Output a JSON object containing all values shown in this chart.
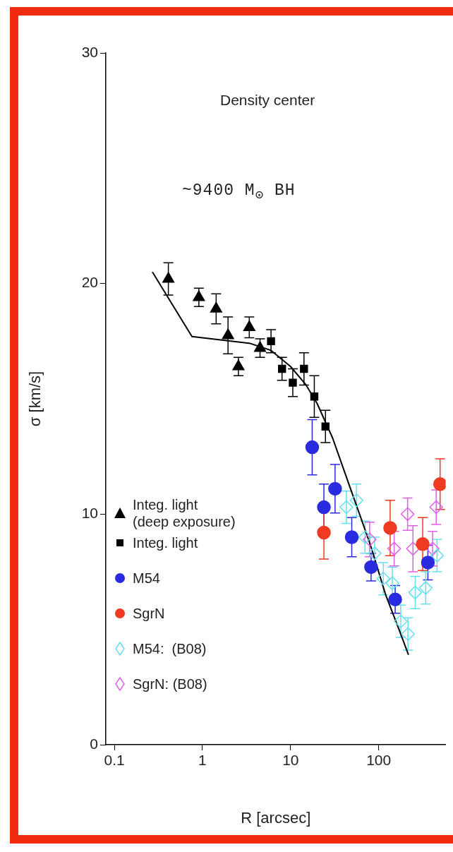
{
  "chart_data": {
    "type": "scatter",
    "xlabel": "R [arcsec]",
    "ylabel": "σ [km/s]",
    "annotations": [
      "Density center",
      "~9400 M$_{⊙}$ BH"
    ],
    "log": "x",
    "xlim": [
      0.08,
      575
    ],
    "xticks": [
      0.1,
      1,
      10,
      100
    ],
    "ylim": [
      0,
      30
    ],
    "yticks": [
      0,
      10,
      20,
      30
    ],
    "grid": false,
    "legend": "bottom left",
    "series": [
      {
        "name": "Integ. light\n(deep exposure)",
        "type": "scatter",
        "marker": "triangle",
        "color": "#000000",
        "x": [
          0.41,
          0.91,
          1.43,
          1.95,
          2.56,
          3.4,
          4.5
        ],
        "values": [
          20.2,
          19.4,
          18.9,
          17.75,
          16.4,
          18.1,
          17.2
        ],
        "errors": [
          0.7,
          0.4,
          0.65,
          0.8,
          0.4,
          0.45,
          0.4
        ]
      },
      {
        "name": "Integ. light",
        "type": "scatter",
        "marker": "square",
        "color": "#000000",
        "x": [
          6.0,
          8.0,
          10.6,
          14.2,
          18.6,
          24.9
        ],
        "values": [
          17.5,
          16.3,
          15.7,
          16.3,
          15.1,
          13.8
        ],
        "errors": [
          0.5,
          0.5,
          0.6,
          0.7,
          0.9,
          0.7
        ]
      },
      {
        "name": "M54",
        "type": "scatter",
        "marker": "circle",
        "color": "#2a2ae0",
        "x": [
          17.6,
          23.9,
          32,
          49.5,
          82,
          154,
          362
        ],
        "values": [
          12.9,
          10.3,
          11.1,
          9.0,
          7.7,
          6.3,
          7.9
        ],
        "errors": [
          1.2,
          1.0,
          1.05,
          0.85,
          0.6,
          0.6,
          0.75
        ]
      },
      {
        "name": "SgrN",
        "type": "scatter",
        "marker": "circle",
        "color": "#f03a22",
        "x": [
          23.9,
          135,
          316,
          498
        ],
        "values": [
          9.2,
          9.4,
          8.7,
          11.3
        ],
        "errors": [
          1.15,
          1.2,
          1.15,
          1.1
        ]
      },
      {
        "name": "M54:  (B08)",
        "type": "scatter",
        "marker": "diamond",
        "color": "#66e0f0",
        "x": [
          43,
          56,
          70,
          90,
          113,
          143,
          178,
          215,
          260,
          342,
          460
        ],
        "values": [
          10.3,
          10.6,
          9.0,
          8.3,
          7.2,
          7.0,
          5.35,
          4.8,
          6.6,
          6.8,
          8.2
        ],
        "errors": [
          0.7,
          0.7,
          0.7,
          0.7,
          0.7,
          0.7,
          0.7,
          0.7,
          0.7,
          0.7,
          0.7
        ]
      },
      {
        "name": "SgrN: (B08)",
        "type": "scatter",
        "marker": "diamond",
        "color": "#e060e8",
        "x": [
          79,
          150,
          213,
          245,
          410,
          450
        ],
        "values": [
          8.9,
          8.5,
          10.0,
          8.5,
          8.5,
          10.3
        ],
        "errors": [
          0.75,
          0.75,
          0.7,
          1.0,
          0.75,
          0.75
        ]
      },
      {
        "type": "line",
        "marker": "none",
        "line_style": "solid",
        "color": "#000000",
        "x": [
          0.27,
          0.76,
          3.5,
          6,
          10,
          15,
          20,
          30,
          50,
          80,
          120,
          170,
          218
        ],
        "values": [
          20.5,
          17.7,
          17.4,
          17.1,
          16.4,
          15.6,
          14.8,
          13.3,
          10.9,
          8.7,
          6.5,
          5.0,
          3.9
        ]
      }
    ]
  }
}
